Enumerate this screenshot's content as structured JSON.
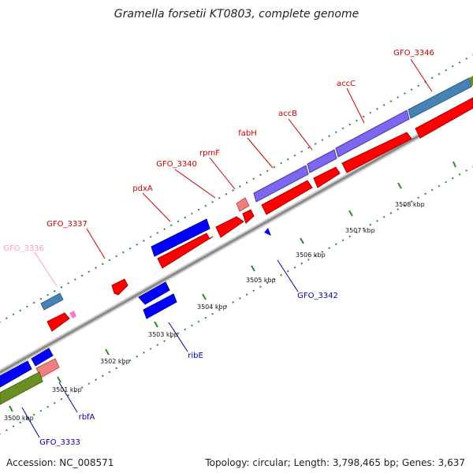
{
  "title": "Gramella forsetii KT0803, complete genome",
  "footer": {
    "accession": "Accession: NC_008571",
    "topology": "Topology: circular; Length: 3,798,465 bp; Genes: 3,637"
  },
  "colors": {
    "red": "#ff0000",
    "blue": "#0000ff",
    "purple": "#6a5acd",
    "steelblue": "#4682b4",
    "pink_rna": "#f08080",
    "olive": "#6b8e23",
    "grey_axis": "#808080",
    "label_red": "#cc0000",
    "label_blue": "#0000aa",
    "label_pink": "#ff99cc"
  },
  "kbp_labels": [
    "3500 kbp",
    "3501 kbp",
    "3502 kbp",
    "3503 kbp",
    "3504 kbp",
    "3505 kbp",
    "3506 kbp",
    "3507 kbp",
    "3508 kbp"
  ],
  "gene_labels_top": [
    "GFO_3336",
    "GFO_3337",
    "pdxA",
    "GFO_3340",
    "rpmF",
    "fabH",
    "accB",
    "accC",
    "GFO_3346"
  ],
  "gene_labels_bottom": [
    "GFO_3333",
    "rbfA",
    "ribE",
    "GFO_3342"
  ]
}
